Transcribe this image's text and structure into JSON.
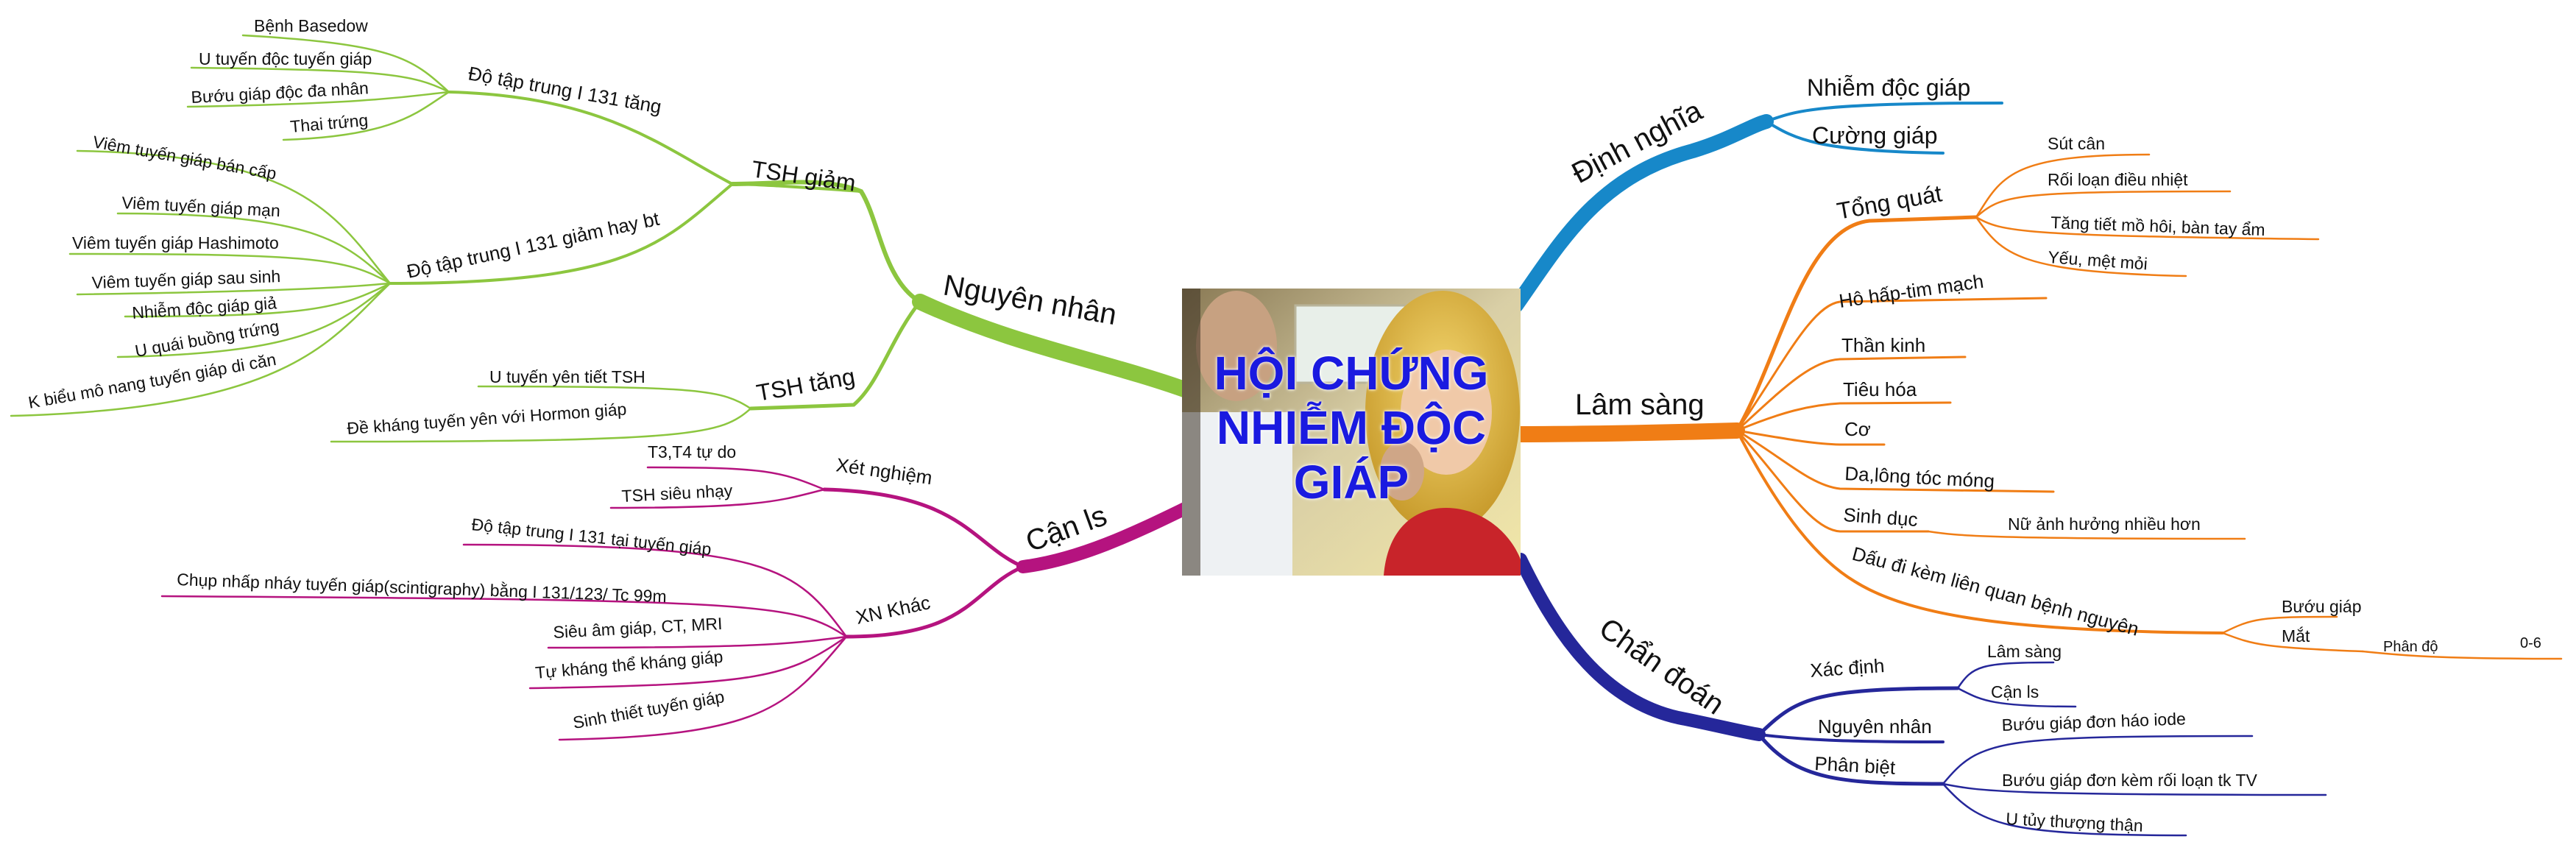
{
  "colors": {
    "nguyen_nhan": "#8cc63f",
    "can_ls": "#b5137f",
    "dinh_nghia": "#1788c9",
    "lam_sang": "#f07d15",
    "chan_doan": "#25279a",
    "center_title": "#1a1ae0"
  },
  "center": {
    "title_line1": "HỘI CHỨNG",
    "title_line2": "NHIỄM ĐỘC",
    "title_line3": "GIÁP",
    "image": "clinical-photo"
  },
  "nguyen_nhan": {
    "label": "Nguyên nhân",
    "tsh_giam": {
      "label": "TSH giảm",
      "tang": {
        "label": "Độ tập trung I 131 tăng",
        "items": [
          "Bệnh Basedow",
          "U tuyến độc tuyến giáp",
          "Bướu giáp độc đa nhân",
          "Thai trứng"
        ]
      },
      "giam": {
        "label": "Độ tập trung I 131 giảm hay bt",
        "items": [
          "Viêm tuyến giáp bán cấp",
          "Viêm tuyến giáp mạn",
          "Viêm tuyến giáp Hashimoto",
          "Viêm tuyến giáp sau sinh",
          "Nhiễm độc giáp giả",
          "U quái buồng trứng",
          "K biểu mô nang tuyến giáp di căn"
        ]
      }
    },
    "tsh_tang": {
      "label": "TSH tăng",
      "items": [
        "U tuyến yên tiết TSH",
        "Đề kháng tuyến yên với Hormon giáp"
      ]
    }
  },
  "can_ls": {
    "label": "Cận ls",
    "xet_nghiem": {
      "label": "Xét nghiệm",
      "items": [
        "T3,T4 tự do",
        "TSH siêu nhạy"
      ]
    },
    "xn_khac": {
      "label": "XN Khác",
      "items": [
        "Độ tập trung I 131 tại tuyến giáp",
        "Chụp nhấp nháy tuyến giáp(scintigraphy) bằng I 131/123/ Tc 99m",
        "Siêu âm giáp, CT, MRI",
        "Tự kháng thể kháng giáp",
        "Sinh thiết tuyến giáp"
      ]
    }
  },
  "dinh_nghia": {
    "label": "Định nghĩa",
    "items": [
      "Nhiễm độc giáp",
      "Cường giáp"
    ]
  },
  "lam_sang": {
    "label": "Lâm sàng",
    "tong_quat": {
      "label": "Tổng quát",
      "items": [
        "Sút cân",
        "Rối loạn điều nhiệt",
        "Tăng tiết mồ hôi, bàn tay ẩm",
        "Yếu, mệt mỏi"
      ]
    },
    "ho_hap": "Hô hấp-tim mạch",
    "than_kinh": "Thần kinh",
    "tieu_hoa": "Tiêu hóa",
    "co": "Cơ",
    "da": "Da,lông tóc móng",
    "sinh_duc": {
      "label": "Sinh dục",
      "note": "Nữ ảnh hưởng nhiều hơn"
    },
    "dau_di_kem": {
      "label": "Dấu đi kèm liên quan bệnh nguyên",
      "buou_giap": "Bướu giáp",
      "mat": "Mắt",
      "phan_do": "Phân độ",
      "phan_do_value": "0-6"
    }
  },
  "chan_doan": {
    "label": "Chẩn đoán",
    "xac_dinh": {
      "label": "Xác định",
      "items": [
        "Lâm sàng",
        "Cận ls"
      ]
    },
    "nguyen_nhan": "Nguyên nhân",
    "phan_biet": {
      "label": "Phân biệt",
      "items": [
        "Bướu giáp đơn háo iode",
        "Bướu giáp đơn kèm rối loạn tk TV",
        "U tủy thượng thận"
      ]
    }
  }
}
